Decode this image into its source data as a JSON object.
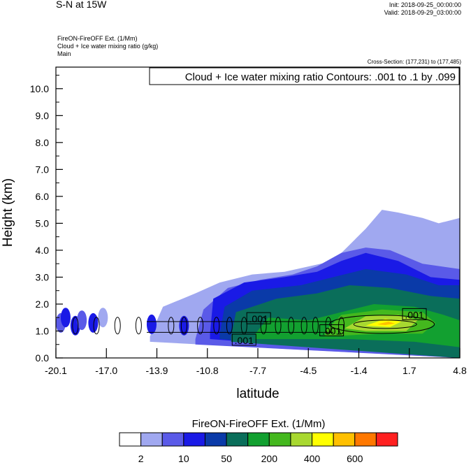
{
  "header": {
    "title": "S-N at 15W",
    "init": "Init: 2018-09-25_00:00:00",
    "valid": "Valid: 2018-09-29_03:00:00"
  },
  "subtitle": {
    "line1": "FireON-FireOFF Ext.   (1/Mm)",
    "line2": "Cloud + Ice water mixing ratio   (g/kg)",
    "line3": "Main"
  },
  "cross_section": "Cross-Section: (177,231) to (177,485)",
  "chart_data": {
    "type": "heatmap",
    "title": "Cloud + Ice water mixing ratio Contours: .001 to .1 by .099",
    "xlabel": "latitude",
    "ylabel": "Height (km)",
    "xlim": [
      -20.1,
      4.8
    ],
    "ylim": [
      0,
      10.8
    ],
    "x_ticks": [
      "-20.1",
      "-17.0",
      "-13.9",
      "-10.8",
      "-7.7",
      "-4.5",
      "-1.4",
      "1.7",
      "4.8"
    ],
    "y_ticks": [
      "0.0",
      "1.0",
      "2.0",
      "3.0",
      "4.0",
      "5.0",
      "6.0",
      "7.0",
      "8.0",
      "9.0",
      "10.0"
    ],
    "colorbar": {
      "label": "FireON-FireOFF Ext.  (1/Mm)",
      "tick_labels": [
        "2",
        "10",
        "50",
        "200",
        "400",
        "600"
      ],
      "colors": [
        "#ffffff",
        "#a0a8f0",
        "#5a5ae8",
        "#1a1ae6",
        "#0a3aa8",
        "#0a6e5a",
        "#12a030",
        "#44b81e",
        "#a8d830",
        "#ffff00",
        "#ffc000",
        "#ff7800",
        "#ff2020"
      ]
    },
    "contour_labels": [
      ".001",
      ".001",
      ".001",
      ".001"
    ],
    "shaded_layers": [
      {
        "level": 1,
        "color": "#a0a8f0",
        "points": [
          [
            -14.3,
            0.8
          ],
          [
            -13.5,
            1.9
          ],
          [
            -11.5,
            2.4
          ],
          [
            -10.0,
            2.8
          ],
          [
            -8.0,
            3.1
          ],
          [
            -6.0,
            3.2
          ],
          [
            -4.5,
            3.4
          ],
          [
            -3.0,
            3.6
          ],
          [
            -2.0,
            4.2
          ],
          [
            -1.0,
            4.8
          ],
          [
            0.0,
            5.5
          ],
          [
            1.0,
            5.4
          ],
          [
            2.5,
            5.2
          ],
          [
            3.5,
            5.0
          ],
          [
            4.8,
            5.2
          ],
          [
            4.8,
            0.0
          ],
          [
            -14.3,
            0.6
          ]
        ]
      },
      {
        "level": 2,
        "color": "#5a5ae8",
        "points": [
          [
            -11.5,
            0.7
          ],
          [
            -11.0,
            1.8
          ],
          [
            -9.5,
            2.6
          ],
          [
            -7.5,
            2.9
          ],
          [
            -5.5,
            3.1
          ],
          [
            -4.0,
            3.4
          ],
          [
            -2.5,
            3.9
          ],
          [
            -1.0,
            4.1
          ],
          [
            0.5,
            4.0
          ],
          [
            2.5,
            3.5
          ],
          [
            4.8,
            3.3
          ],
          [
            4.8,
            0.0
          ],
          [
            -11.5,
            0.5
          ]
        ]
      },
      {
        "level": 3,
        "color": "#1a1ae6",
        "points": [
          [
            -10.6,
            0.9
          ],
          [
            -10.4,
            2.2
          ],
          [
            -8.5,
            2.8
          ],
          [
            -6.0,
            3.0
          ],
          [
            -4.0,
            3.2
          ],
          [
            -2.5,
            3.6
          ],
          [
            -1.0,
            3.9
          ],
          [
            1.0,
            3.6
          ],
          [
            3.0,
            3.0
          ],
          [
            4.8,
            2.9
          ],
          [
            4.8,
            0.0
          ],
          [
            -10.6,
            0.7
          ]
        ]
      },
      {
        "level": 4,
        "color": "#0a3aa8",
        "points": [
          [
            -10.0,
            0.9
          ],
          [
            -9.7,
            1.9
          ],
          [
            -8.0,
            2.5
          ],
          [
            -5.0,
            2.7
          ],
          [
            -3.0,
            3.0
          ],
          [
            -1.0,
            3.3
          ],
          [
            1.5,
            3.1
          ],
          [
            3.5,
            2.7
          ],
          [
            4.8,
            2.7
          ],
          [
            4.8,
            0.0
          ],
          [
            -10.0,
            0.7
          ]
        ]
      },
      {
        "level": 5,
        "color": "#0a6e5a",
        "points": [
          [
            -9.3,
            0.8
          ],
          [
            -9.0,
            1.7
          ],
          [
            -6.5,
            2.2
          ],
          [
            -4.0,
            2.4
          ],
          [
            -2.0,
            2.7
          ],
          [
            0.5,
            2.6
          ],
          [
            3.0,
            2.3
          ],
          [
            4.8,
            2.2
          ],
          [
            4.8,
            0.0
          ],
          [
            -9.3,
            0.6
          ]
        ]
      },
      {
        "level": 6,
        "color": "#12a030",
        "points": [
          [
            -7.8,
            0.9
          ],
          [
            -7.0,
            1.5
          ],
          [
            -4.5,
            1.4
          ],
          [
            -2.5,
            1.7
          ],
          [
            -0.5,
            2.0
          ],
          [
            2.0,
            1.9
          ],
          [
            3.8,
            1.6
          ],
          [
            4.8,
            1.4
          ],
          [
            4.8,
            0.4
          ],
          [
            2.0,
            0.6
          ],
          [
            -2.0,
            0.7
          ],
          [
            -7.8,
            0.7
          ]
        ]
      },
      {
        "level": 7,
        "color": "#44b81e",
        "points": [
          [
            -3.5,
            1.0
          ],
          [
            -2.5,
            1.6
          ],
          [
            0.0,
            1.8
          ],
          [
            2.5,
            1.7
          ],
          [
            3.3,
            1.3
          ],
          [
            2.5,
            0.9
          ],
          [
            0.0,
            0.9
          ],
          [
            -3.5,
            0.8
          ]
        ]
      },
      {
        "level": 8,
        "color": "#a8d830",
        "points": [
          [
            -2.3,
            1.1
          ],
          [
            -1.0,
            1.55
          ],
          [
            1.0,
            1.6
          ],
          [
            2.2,
            1.4
          ],
          [
            1.5,
            1.0
          ],
          [
            -1.0,
            1.0
          ]
        ]
      },
      {
        "level": 9,
        "color": "#ffff00",
        "points": [
          [
            -1.0,
            1.2
          ],
          [
            0.2,
            1.45
          ],
          [
            1.2,
            1.35
          ],
          [
            0.5,
            1.15
          ]
        ]
      },
      {
        "level": 10,
        "color": "#ffc000",
        "points": [
          [
            -0.3,
            1.25
          ],
          [
            0.4,
            1.35
          ],
          [
            0.8,
            1.28
          ],
          [
            0.2,
            1.22
          ]
        ]
      }
    ]
  }
}
